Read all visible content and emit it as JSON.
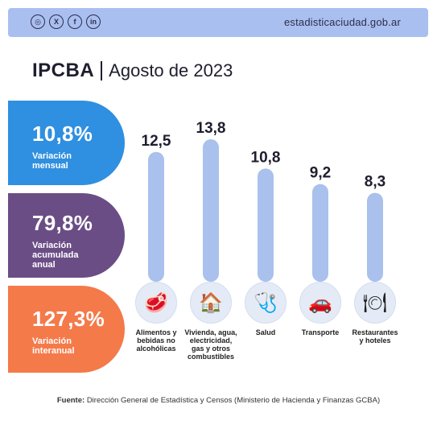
{
  "header": {
    "social_icons": [
      {
        "name": "instagram-icon",
        "glyph": "◎"
      },
      {
        "name": "x-icon",
        "glyph": "X"
      },
      {
        "name": "facebook-icon",
        "glyph": "f"
      },
      {
        "name": "linkedin-icon",
        "glyph": "in"
      }
    ],
    "site": "estadisticaciudad.gob.ar"
  },
  "title": {
    "main": "IPCBA",
    "date": "Agosto de 2023"
  },
  "stats": [
    {
      "value": "10,8%",
      "label": "Variación\nmensual",
      "color": "#2f8fe0"
    },
    {
      "value": "79,8%",
      "label": "Variación\nacumulada\nanual",
      "color": "#6b4d86"
    },
    {
      "value": "127,3%",
      "label": "Variación\ninteranual",
      "color": "#f47a4a"
    }
  ],
  "chart_data": {
    "type": "bar",
    "categories": [
      "Alimentos y bebidas no alcohólicas",
      "Vivienda, agua, electricidad, gas y otros combustibles",
      "Salud",
      "Transporte",
      "Restaurantes y hoteles"
    ],
    "values": [
      12.5,
      13.8,
      10.8,
      9.2,
      8.3
    ],
    "value_labels": [
      "12,5",
      "13,8",
      "10,8",
      "9,2",
      "8,3"
    ],
    "category_lines": [
      [
        "Alimentos y",
        "bebidas no",
        "alcohólicas"
      ],
      [
        "Vivienda, agua,",
        "electricidad,",
        "gas y otros",
        "combustibles"
      ],
      [
        "Salud"
      ],
      [
        "Transporte"
      ],
      [
        "Restaurantes",
        "y hoteles"
      ]
    ],
    "category_icons": [
      "food-icon",
      "house-icon",
      "doctor-icon",
      "transport-icon",
      "restaurant-icon"
    ],
    "bar_color": "#a9c1ec"
  },
  "source": {
    "prefix": "Fuente:",
    "text": "Dirección General de Estadística y Censos (Ministerio de Hacienda y Finanzas GCBA)"
  }
}
